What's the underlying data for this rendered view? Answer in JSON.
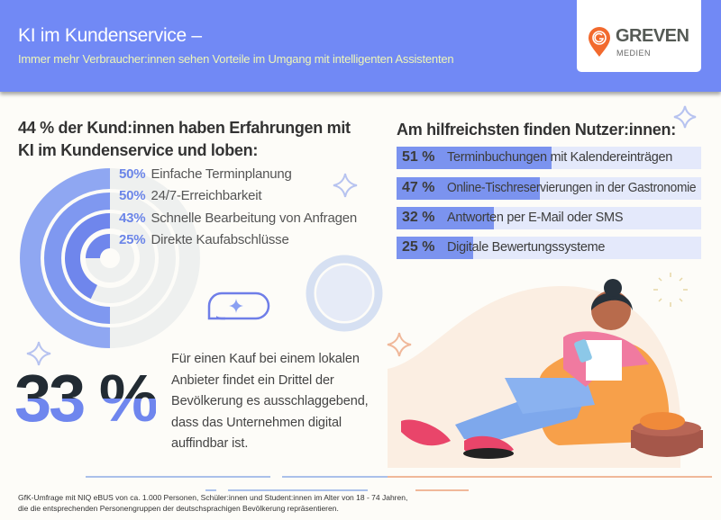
{
  "header": {
    "title": "KI im Kundenservice –",
    "subtitle": "Immer mehr Verbraucher:innen sehen Vorteile im Umgang mit intelligenten Assistenten",
    "logo": {
      "word": "GREVEN",
      "sub": "MEDIEN"
    }
  },
  "colors": {
    "header": "#7189f5",
    "accent": "#6b85e8",
    "bar_fill": "#7b93ef",
    "bar_track": "#e4e9fb",
    "logo_orange": "#f26a2e"
  },
  "left": {
    "heading": "44 % der Kund:innen haben Erfahrungen mit KI im Kundenservice und loben:"
  },
  "right": {
    "heading": "Am hilfreichsten finden Nutzer:innen:"
  },
  "stat": {
    "value": "33 %",
    "text": "Für einen Kauf bei einem lokalen Anbieter findet ein Drittel der Bevölkerung es ausschlaggebend, dass das Unternehmen digital auffindbar ist."
  },
  "footnote": {
    "line1": "GfK-Umfrage mit NIQ eBUS von ca. 1.000 Personen, Schüler:innen und Student:innen im Alter von 18 - 74 Jahren,",
    "line2": "die die entsprechenden Personengruppen der deutschsprachigen Bevölkerung repräsentieren."
  },
  "chart_data": [
    {
      "type": "radial-bar",
      "ylim": [
        0,
        100
      ],
      "unit": "%",
      "categories": [
        "Einfache Terminplanung",
        "24/7-Erreichbarkeit",
        "Schnelle Bearbeitung von Anfragen",
        "Direkte Kaufabschlüsse"
      ],
      "values": [
        50,
        50,
        43,
        25
      ],
      "labels": [
        "50%",
        "50%",
        "43%",
        "25%"
      ]
    },
    {
      "type": "bar",
      "orientation": "horizontal",
      "xlim": [
        0,
        100
      ],
      "unit": "%",
      "categories": [
        "Terminbuchungen mit Kalendereinträgen",
        "Online-Tischreservierungen in der Gastronomie",
        "Antworten per E-Mail oder SMS",
        "Digitale Bewertungssysteme"
      ],
      "values": [
        51,
        47,
        32,
        25
      ],
      "labels": [
        "51 %",
        "47 %",
        "32 %",
        "25 %"
      ]
    }
  ]
}
